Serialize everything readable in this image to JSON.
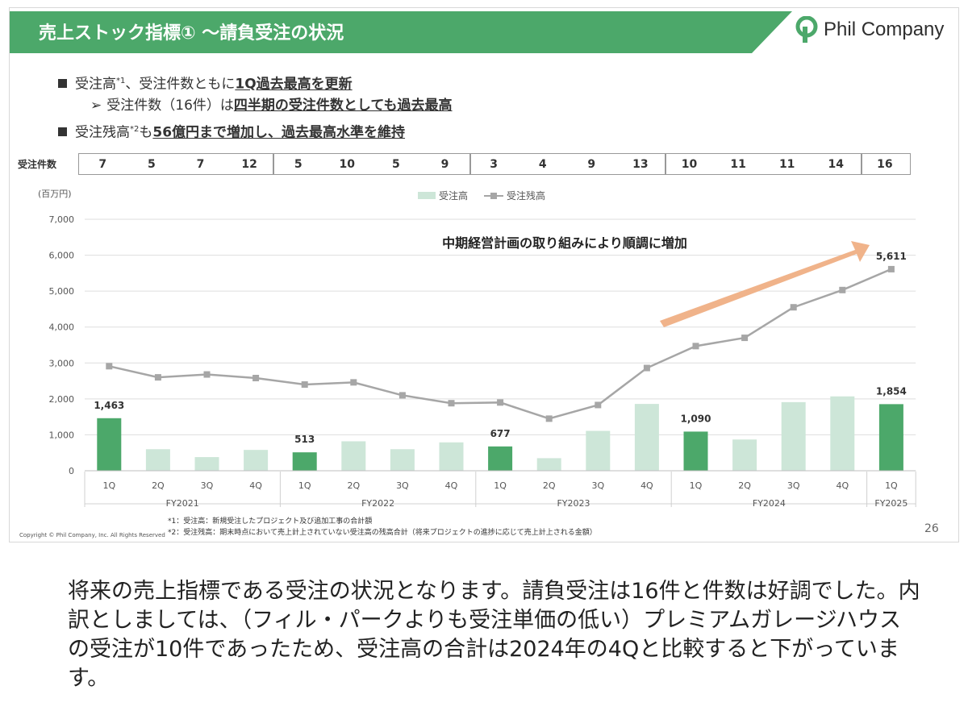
{
  "slide": {
    "title": "売上ストック指標① ～請負受注の状況",
    "logo": "Phil Company",
    "page_number": "26",
    "copyright": "Copyright © Phil Company, Inc.  All Rights Reserved"
  },
  "bullets": [
    {
      "prefix": "受注高",
      "sup": "*1",
      "mid": "、受注件数ともに",
      "em": "1Q過去最高を更新"
    },
    {
      "prefix": "受注件数（16件）は",
      "em": "四半期の受注件数としても過去最高"
    },
    {
      "prefix": "受注残高",
      "sup": "*2",
      "mid": "も",
      "em": "56億円まで増加し、過去最高水準を維持"
    }
  ],
  "order_count": {
    "label": "受注件数",
    "values": [
      "7",
      "5",
      "7",
      "12",
      "5",
      "10",
      "5",
      "9",
      "3",
      "4",
      "9",
      "13",
      "10",
      "11",
      "11",
      "14",
      "16"
    ]
  },
  "footnotes": [
    "*1：受注高：新規受注したプロジェクト及び追加工事の合計額",
    "*2：受注残高：期末時点において売上計上されていない受注高の残高合計（将来プロジェクトの進捗に応じて売上計上される金額）"
  ],
  "caption": "将来の売上指標である受注の状況となります。請負受注は16件と件数は好調でした。内訳としましては、（フィル・パークよりも受注単価の低い）プレミアムガレージハウスの受注が10件であったため、受注高の合計は2024年の4Qと比較すると下がっています。",
  "colors": {
    "bar_light": "#cde6d8",
    "bar_dark": "#4ca86a",
    "line": "#a6a6a6",
    "arrow": "#f0b38a",
    "title_band": "#4ca86a"
  },
  "chart_data": {
    "type": "bar",
    "unit_label": "(百万円)",
    "categories": [
      "1Q",
      "2Q",
      "3Q",
      "4Q",
      "1Q",
      "2Q",
      "3Q",
      "4Q",
      "1Q",
      "2Q",
      "3Q",
      "4Q",
      "1Q",
      "2Q",
      "3Q",
      "4Q",
      "1Q"
    ],
    "groups": [
      {
        "label": "FY2021",
        "count": 4
      },
      {
        "label": "FY2022",
        "count": 4
      },
      {
        "label": "FY2023",
        "count": 4
      },
      {
        "label": "FY2024",
        "count": 4
      },
      {
        "label": "FY2025",
        "count": 1
      }
    ],
    "series": [
      {
        "name": "受注高",
        "type": "bar",
        "values": [
          1463,
          600,
          380,
          580,
          513,
          820,
          600,
          790,
          677,
          350,
          1110,
          1860,
          1090,
          870,
          1910,
          2070,
          1854
        ],
        "highlight": [
          true,
          false,
          false,
          false,
          true,
          false,
          false,
          false,
          true,
          false,
          false,
          false,
          true,
          false,
          false,
          false,
          true
        ]
      },
      {
        "name": "受注残高",
        "type": "line",
        "values": [
          2910,
          2600,
          2680,
          2580,
          2400,
          2460,
          2100,
          1880,
          1900,
          1450,
          1830,
          2860,
          3470,
          3700,
          4550,
          5030,
          5611
        ]
      }
    ],
    "data_labels": [
      {
        "index": 0,
        "series": 0,
        "text": "1,463"
      },
      {
        "index": 4,
        "series": 0,
        "text": "513"
      },
      {
        "index": 8,
        "series": 0,
        "text": "677"
      },
      {
        "index": 12,
        "series": 0,
        "text": "1,090"
      },
      {
        "index": 16,
        "series": 0,
        "text": "1,854"
      },
      {
        "index": 16,
        "series": 1,
        "text": "5,611"
      }
    ],
    "ylim": [
      0,
      7000
    ],
    "yticks": [
      0,
      1000,
      2000,
      3000,
      4000,
      5000,
      6000,
      7000
    ],
    "ytick_labels": [
      "0",
      "1,000",
      "2,000",
      "3,000",
      "4,000",
      "5,000",
      "6,000",
      "7,000"
    ],
    "grid": true,
    "legend_position": "top-center",
    "annotation": "中期経営計画の取り組みにより順調に増加"
  }
}
